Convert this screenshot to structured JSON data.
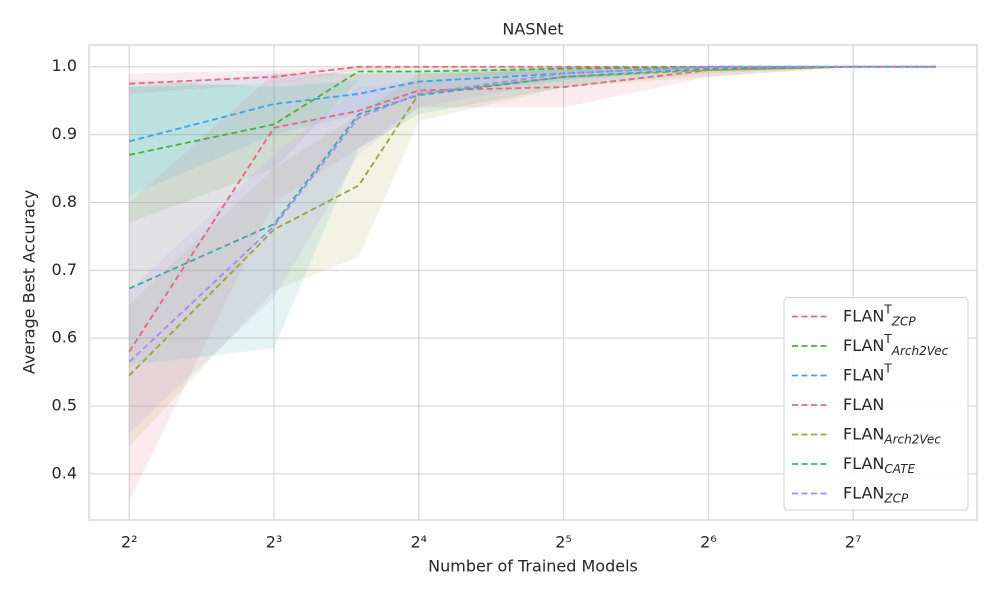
{
  "chart_data": {
    "type": "line",
    "title": "NASNet",
    "xlabel": "Number of Trained Models",
    "ylabel": "Average Best Accuracy",
    "x": [
      4,
      8,
      12,
      16,
      32,
      64,
      128,
      190
    ],
    "xscale": "log2",
    "xlim": [
      3.3,
      231.5
    ],
    "ylim": [
      0.332,
      1.032
    ],
    "xticks": [
      {
        "value": 4,
        "label": "2²"
      },
      {
        "value": 8,
        "label": "2³"
      },
      {
        "value": 16,
        "label": "2⁴"
      },
      {
        "value": 32,
        "label": "2⁵"
      },
      {
        "value": 64,
        "label": "2⁶"
      },
      {
        "value": 128,
        "label": "2⁷"
      }
    ],
    "yticks": [
      0.4,
      0.5,
      0.6,
      0.7,
      0.8,
      0.9,
      {
        "value": 1.0,
        "label": "1.0"
      }
    ],
    "grid": true,
    "legend": "lower right",
    "series": [
      {
        "name": "FLAN",
        "sup": "T",
        "sub": "ZCP",
        "color": "#e8677f",
        "values": [
          0.975,
          0.985,
          1.0,
          1.0,
          1.0,
          1.0,
          1.0,
          1.0
        ],
        "lower": [
          0.96,
          0.975,
          0.995,
          0.998,
          0.999,
          1.0,
          1.0,
          1.0
        ],
        "upper": [
          0.99,
          0.995,
          1.0,
          1.0,
          1.0,
          1.0,
          1.0,
          1.0
        ]
      },
      {
        "name": "FLAN",
        "sup": "T",
        "sub": "Arch2Vec",
        "color": "#4daf3a",
        "values": [
          0.87,
          0.915,
          0.993,
          0.993,
          0.997,
          1.0,
          1.0,
          1.0
        ],
        "lower": [
          0.77,
          0.85,
          0.98,
          0.985,
          0.99,
          0.998,
          1.0,
          1.0
        ],
        "upper": [
          0.97,
          0.975,
          1.0,
          1.0,
          1.0,
          1.0,
          1.0,
          1.0
        ]
      },
      {
        "name": "FLAN",
        "sup": "T",
        "color": "#3ba3ec",
        "values": [
          0.89,
          0.945,
          0.96,
          0.978,
          0.99,
          1.0,
          1.0,
          1.0
        ],
        "lower": [
          0.81,
          0.9,
          0.93,
          0.96,
          0.98,
          0.997,
          1.0,
          1.0
        ],
        "upper": [
          0.97,
          0.99,
          0.99,
          0.995,
          1.0,
          1.0,
          1.0,
          1.0
        ]
      },
      {
        "name": "FLAN",
        "color": "#e8677f",
        "values": [
          0.58,
          0.91,
          0.935,
          0.965,
          0.97,
          0.995,
          1.0,
          1.0
        ],
        "lower": [
          0.36,
          0.8,
          0.88,
          0.94,
          0.94,
          0.985,
          1.0,
          1.0
        ],
        "upper": [
          0.8,
          0.99,
          0.99,
          0.99,
          0.995,
          1.0,
          1.0,
          1.0
        ]
      },
      {
        "name": "FLAN",
        "sub": "Arch2Vec",
        "color": "#9aa532",
        "values": [
          0.545,
          0.76,
          0.825,
          0.96,
          0.985,
          0.995,
          1.0,
          1.0
        ],
        "lower": [
          0.44,
          0.67,
          0.72,
          0.92,
          0.97,
          0.985,
          1.0,
          1.0
        ],
        "upper": [
          0.65,
          0.85,
          0.93,
          0.99,
          1.0,
          1.0,
          1.0,
          1.0
        ]
      },
      {
        "name": "FLAN",
        "sub": "CATE",
        "color": "#36ada4",
        "values": [
          0.673,
          0.768,
          0.93,
          0.958,
          0.985,
          0.997,
          1.0,
          1.0
        ],
        "lower": [
          0.56,
          0.585,
          0.88,
          0.93,
          0.97,
          0.99,
          1.0,
          1.0
        ],
        "upper": [
          0.98,
          0.97,
          0.98,
          0.985,
          1.0,
          1.0,
          1.0,
          1.0
        ]
      },
      {
        "name": "FLAN",
        "sub": "ZCP",
        "color": "#a48cf4",
        "values": [
          0.565,
          0.765,
          0.925,
          0.96,
          0.99,
          1.0,
          1.0,
          1.0
        ],
        "lower": [
          0.46,
          0.66,
          0.87,
          0.94,
          0.98,
          0.995,
          1.0,
          1.0
        ],
        "upper": [
          0.67,
          0.87,
          0.97,
          0.98,
          1.0,
          1.0,
          1.0,
          1.0
        ]
      }
    ]
  }
}
